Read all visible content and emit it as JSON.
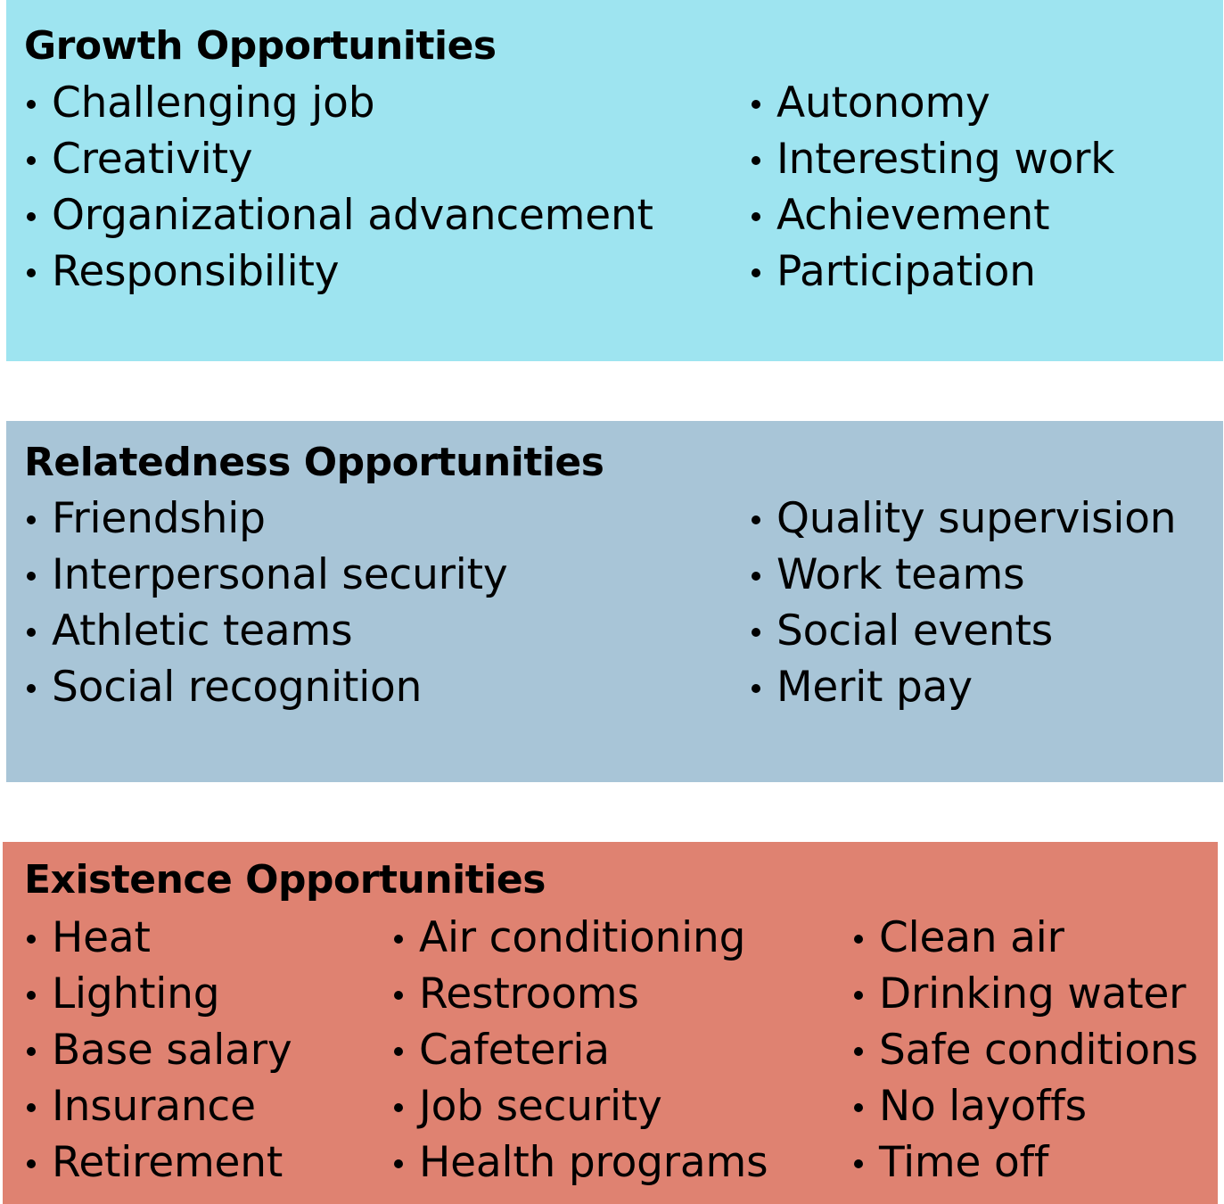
{
  "colors": {
    "growth_fill": "#9ee4f0",
    "relatedness_fill": "#a8c5d7",
    "existence_fill": "#df8271",
    "text": "#000000"
  },
  "growth": {
    "title": "Growth Opportunities",
    "columns": [
      [
        "Challenging job",
        "Creativity",
        "Organizational advancement",
        "Responsibility"
      ],
      [
        "Autonomy",
        "Interesting work",
        "Achievement",
        "Participation"
      ]
    ]
  },
  "relatedness": {
    "title": "Relatedness Opportunities",
    "columns": [
      [
        "Friendship",
        "Interpersonal security",
        "Athletic teams",
        "Social recognition"
      ],
      [
        "Quality supervision",
        "Work teams",
        "Social events",
        "Merit pay"
      ]
    ]
  },
  "existence": {
    "title": "Existence Opportunities",
    "columns": [
      [
        "Heat",
        "Lighting",
        "Base salary",
        "Insurance",
        "Retirement"
      ],
      [
        "Air conditioning",
        "Restrooms",
        "Cafeteria",
        "Job security",
        "Health programs"
      ],
      [
        "Clean air",
        "Drinking water",
        "Safe conditions",
        "No layoffs",
        "Time off"
      ]
    ]
  }
}
